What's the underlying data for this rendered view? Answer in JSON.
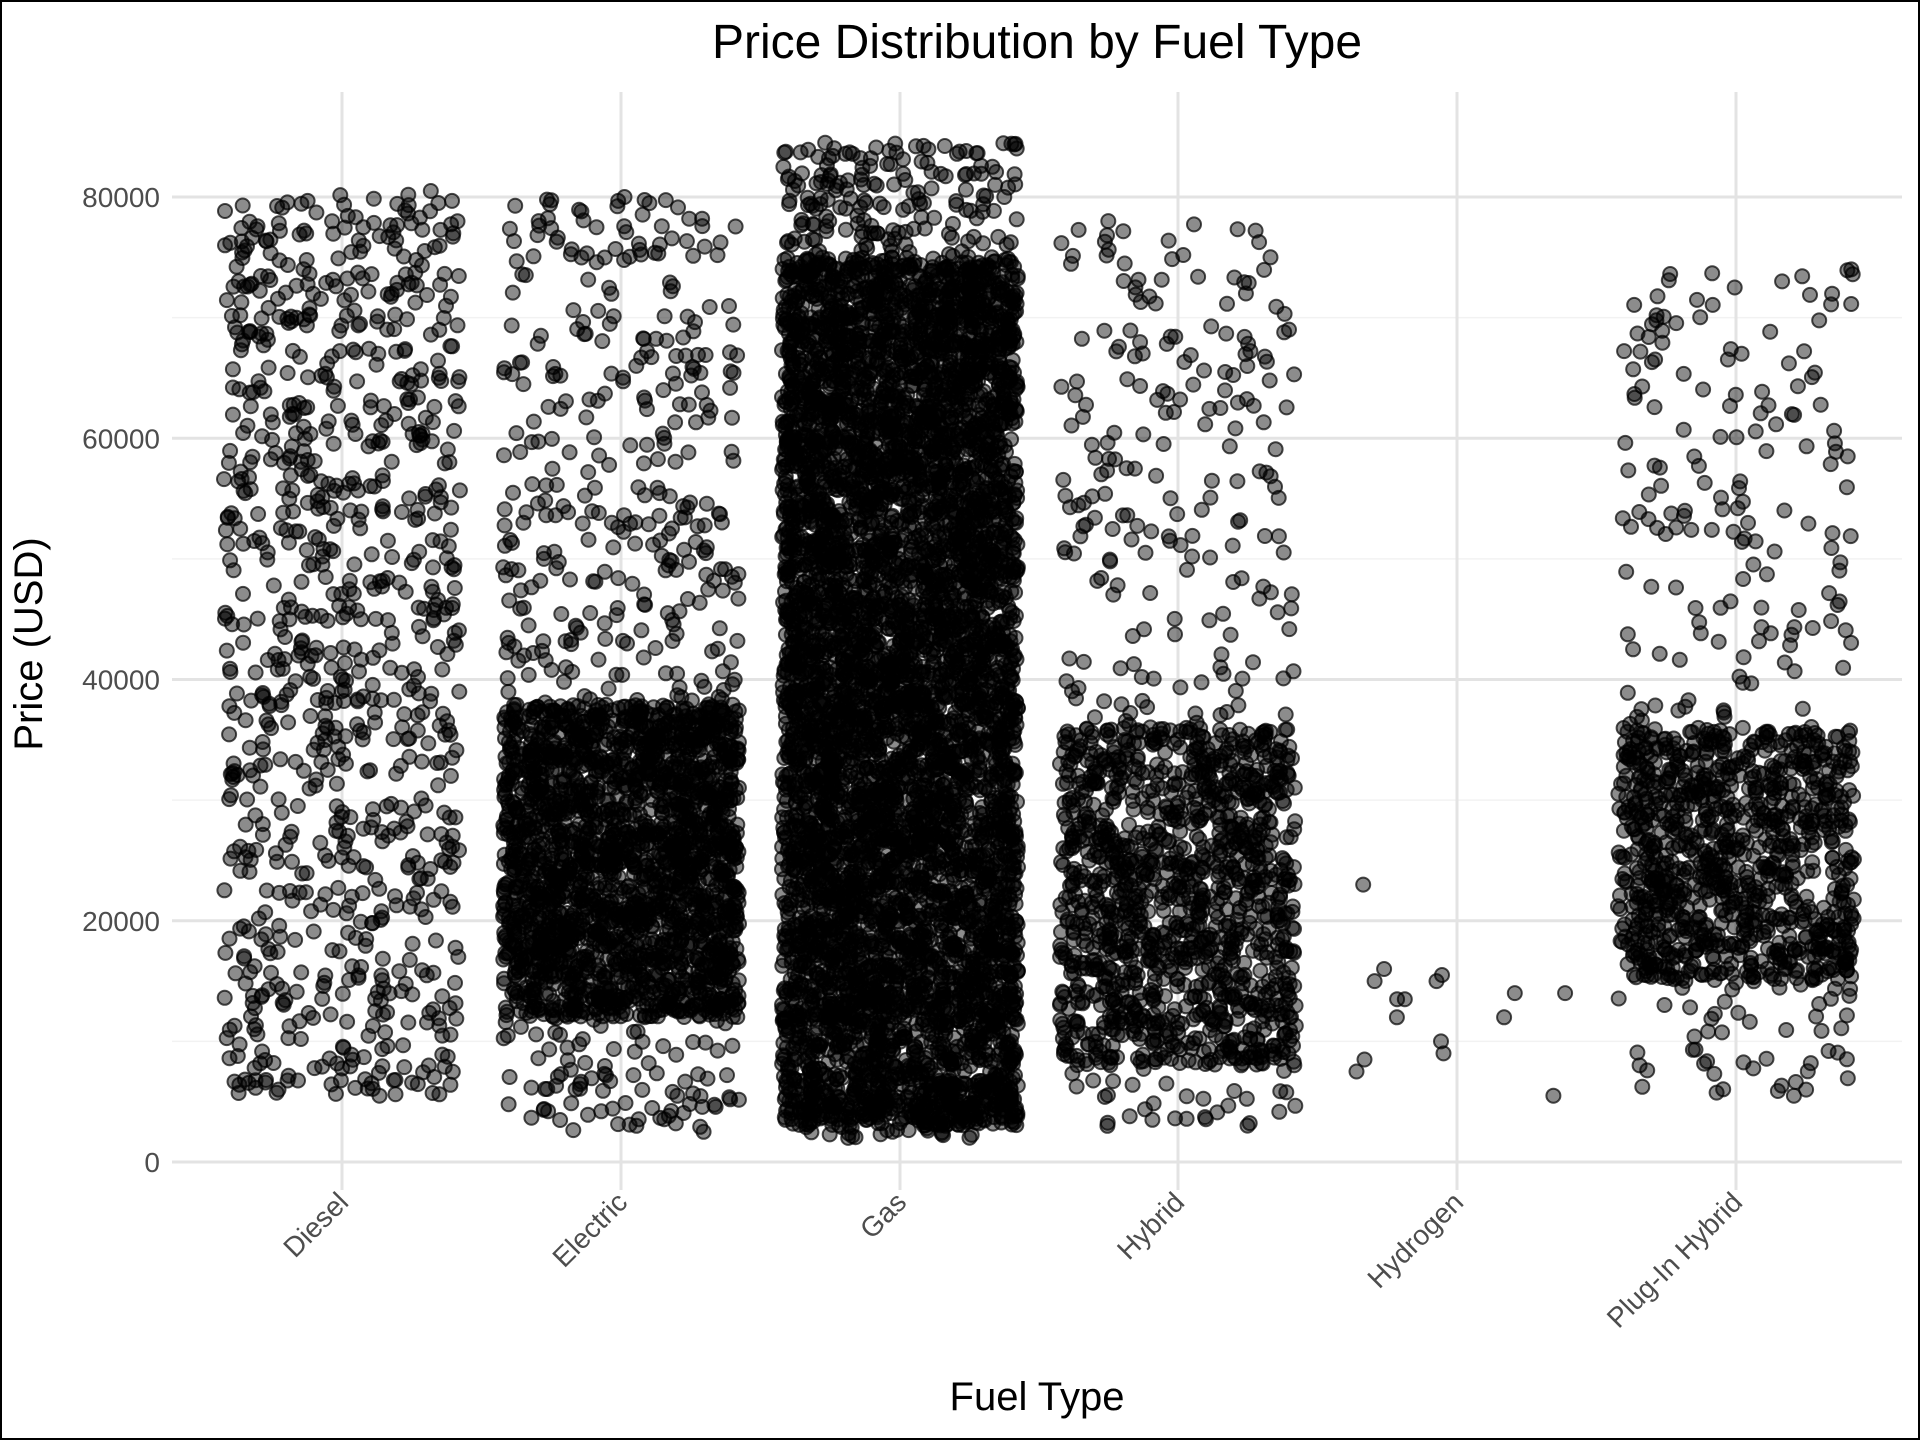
{
  "chart_data": {
    "type": "scatter",
    "subtype": "jitter",
    "title": "Price Distribution by Fuel Type",
    "xlabel": "Fuel Type",
    "ylabel": "Price (USD)",
    "categories": [
      "Diesel",
      "Electric",
      "Gas",
      "Hybrid",
      "Hydrogen",
      "Plug-In Hybrid"
    ],
    "ylim": [
      0,
      85000
    ],
    "yticks": [
      0,
      20000,
      40000,
      60000,
      80000
    ],
    "ytick_labels": [
      "0",
      "20000",
      "40000",
      "60000",
      "80000"
    ],
    "grid": true,
    "point_color": "#000000",
    "point_alpha": 0.45,
    "series": [
      {
        "category": "Diesel",
        "range": [
          5500,
          80500
        ],
        "dense_range": [
          5500,
          80500
        ],
        "n_points": 900,
        "extreme_points": [
          80500,
          79500,
          77000,
          76000,
          6000,
          5500
        ]
      },
      {
        "category": "Electric",
        "range": [
          2500,
          80000
        ],
        "dense_range": [
          12000,
          38000
        ],
        "n_points": 2600,
        "extreme_points": [
          80000,
          78000,
          77500,
          3000,
          2500
        ]
      },
      {
        "category": "Gas",
        "range": [
          2000,
          84500
        ],
        "dense_range": [
          3000,
          75000
        ],
        "n_points": 6500,
        "extreme_points": [
          84500,
          80000,
          79500,
          2500,
          2000
        ]
      },
      {
        "category": "Hybrid",
        "range": [
          3000,
          78000
        ],
        "dense_range": [
          8000,
          36000
        ],
        "n_points": 1500,
        "extreme_points": [
          78000,
          75000,
          72000,
          3500,
          3000
        ]
      },
      {
        "category": "Hydrogen",
        "values": [
          16000,
          14000,
          9000,
          5500,
          12000,
          15000,
          13500,
          12000,
          14000,
          13500,
          7500,
          10000,
          8500,
          23000,
          15000,
          15500
        ],
        "n_points": 16
      },
      {
        "category": "Plug-In Hybrid",
        "range": [
          5500,
          74000
        ],
        "dense_range": [
          15000,
          36000
        ],
        "n_points": 1200,
        "extreme_points": [
          74000,
          73000,
          72500,
          6000,
          5500
        ]
      }
    ]
  }
}
